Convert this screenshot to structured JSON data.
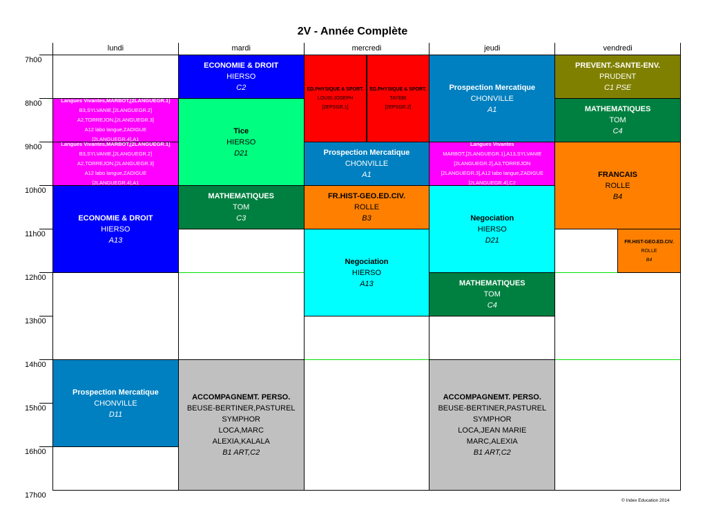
{
  "title": "2V - Année Complète",
  "days": [
    "lundi",
    "mardi",
    "mercredi",
    "jeudi",
    "vendredi"
  ],
  "hours": [
    "7h00",
    "8h00",
    "9h00",
    "10h00",
    "11h00",
    "12h00",
    "13h00",
    "14h00",
    "15h00",
    "16h00",
    "17h00"
  ],
  "lunch_marks": [
    12,
    14
  ],
  "copyright": "© Index Education 2014",
  "colors": {
    "blue": "#0000FF",
    "steel": "#0080C0",
    "magenta": "#FF00FF",
    "green": "#00FF80",
    "darkgreen": "#008040",
    "red": "#FF0000",
    "orange": "#FF8000",
    "cyan": "#00FFFF",
    "olive": "#808000",
    "gray": "#C0C0C0"
  },
  "cells": [
    {
      "day": 0,
      "start": 8,
      "end": 9,
      "color": "magenta",
      "fg": "#fff",
      "size": "small",
      "title": "Langues Vivantes,MARBOT,[2LANGUEGR.1]",
      "lines": [
        "B3,SYLVANIE,[2LANGUEGR.2]",
        "A2,TORREJON,[2LANGUEGR.3]",
        "A12  labo langue,ZADIGUE",
        "[2LANGUEGR.4],A1"
      ],
      "room": ""
    },
    {
      "day": 0,
      "start": 9,
      "end": 10,
      "color": "magenta",
      "fg": "#fff",
      "size": "small",
      "title": "Langues Vivantes,MARBOT,[2LANGUEGR.1]",
      "lines": [
        "B3,SYLVANIE,[2LANGUEGR.2]",
        "A2,TORREJON,[2LANGUEGR.3]",
        "A12  labo langue,ZADIGUE",
        "[2LANGUEGR.4],A1"
      ],
      "room": ""
    },
    {
      "day": 0,
      "start": 10,
      "end": 12,
      "color": "blue",
      "fg": "#fff",
      "title": "ECONOMIE & DROIT",
      "lines": [
        "HIERSO"
      ],
      "room": "A13"
    },
    {
      "day": 0,
      "start": 14,
      "end": 16,
      "color": "steel",
      "fg": "#fff",
      "title": "Prospection Mercatique",
      "lines": [
        "CHONVILLE"
      ],
      "room": "D11"
    },
    {
      "day": 1,
      "start": 7,
      "end": 8,
      "color": "blue",
      "fg": "#fff",
      "title": "ECONOMIE & DROIT",
      "lines": [
        "HIERSO"
      ],
      "room": "C2"
    },
    {
      "day": 1,
      "start": 8,
      "end": 10,
      "color": "green",
      "fg": "#000",
      "title": "Tice",
      "lines": [
        "HIERSO"
      ],
      "room": "D21"
    },
    {
      "day": 1,
      "start": 10,
      "end": 11,
      "color": "darkgreen",
      "fg": "#fff",
      "title": "MATHEMATIQUES",
      "lines": [
        "TOM"
      ],
      "room": "C3"
    },
    {
      "day": 1,
      "start": 14,
      "end": 17,
      "color": "gray",
      "fg": "#000",
      "title": "ACCOMPAGNEMT. PERSO.",
      "lines": [
        "BEUSE-BERTINER,PASTUREL",
        "SYMPHOR",
        "LOCA,MARC",
        "ALEXIA,KALALA"
      ],
      "room": "B1 ART,C2"
    },
    {
      "day": 2,
      "start": 7,
      "end": 9,
      "color": "red",
      "fg": "#000",
      "size": "tiny",
      "half": "left",
      "title": "ED.PHYSIQUE & SPORT.",
      "lines": [
        "LOUIS-JOSEPH",
        "[2EPSGR.1]"
      ],
      "room": ""
    },
    {
      "day": 2,
      "start": 7,
      "end": 9,
      "color": "red",
      "fg": "#000",
      "size": "tiny",
      "half": "right",
      "title": "ED.PHYSIQUE & SPORT.",
      "lines": [
        "TAYEBI",
        "[2EPSGR.2]"
      ],
      "room": ""
    },
    {
      "day": 2,
      "start": 9,
      "end": 10,
      "color": "steel",
      "fg": "#fff",
      "title": "Prospection Mercatique",
      "lines": [
        "CHONVILLE"
      ],
      "room": "A1"
    },
    {
      "day": 2,
      "start": 10,
      "end": 11,
      "color": "orange",
      "fg": "#000",
      "title": "FR.HIST-GEO.ED.CIV.",
      "lines": [
        "ROLLE"
      ],
      "room": "B3"
    },
    {
      "day": 2,
      "start": 11,
      "end": 13,
      "color": "cyan",
      "fg": "#000",
      "title": "Negociation",
      "lines": [
        "HIERSO"
      ],
      "room": "A13"
    },
    {
      "day": 3,
      "start": 7,
      "end": 9,
      "color": "steel",
      "fg": "#fff",
      "title": "Prospection Mercatique",
      "lines": [
        "CHONVILLE"
      ],
      "room": "A1"
    },
    {
      "day": 3,
      "start": 9,
      "end": 10,
      "color": "magenta",
      "fg": "#fff",
      "size": "small",
      "title": "Langues Vivantes",
      "lines": [
        "MARBOT,[2LANGUEGR.1],A13,SYLVANIE",
        "[2LANGUEGR.2],A3,TORREJON",
        "[2LANGUEGR.3],A12  labo langue,ZADIGUE",
        "[2LANGUEGR.4],C2"
      ],
      "room": ""
    },
    {
      "day": 3,
      "start": 10,
      "end": 12,
      "color": "cyan",
      "fg": "#000",
      "title": "Negociation",
      "lines": [
        "HIERSO"
      ],
      "room": "D21"
    },
    {
      "day": 3,
      "start": 12,
      "end": 13,
      "color": "darkgreen",
      "fg": "#fff",
      "title": "MATHEMATIQUES",
      "lines": [
        "TOM"
      ],
      "room": "C4"
    },
    {
      "day": 3,
      "start": 14,
      "end": 17,
      "color": "gray",
      "fg": "#000",
      "title": "ACCOMPAGNEMT. PERSO.",
      "lines": [
        "BEUSE-BERTINER,PASTUREL",
        "SYMPHOR",
        "LOCA,JEAN MARIE",
        "MARC,ALEXIA"
      ],
      "room": "B1 ART,C2"
    },
    {
      "day": 4,
      "start": 7,
      "end": 8,
      "color": "olive",
      "fg": "#fff",
      "title": "PREVENT.-SANTE-ENV.",
      "lines": [
        "PRUDENT"
      ],
      "room": "C1 PSE"
    },
    {
      "day": 4,
      "start": 8,
      "end": 9,
      "color": "darkgreen",
      "fg": "#fff",
      "title": "MATHEMATIQUES",
      "lines": [
        "TOM"
      ],
      "room": "C4"
    },
    {
      "day": 4,
      "start": 9,
      "end": 11,
      "color": "orange",
      "fg": "#000",
      "title": "FRANCAIS",
      "lines": [
        "ROLLE"
      ],
      "room": "B4"
    },
    {
      "day": 4,
      "start": 11,
      "end": 12,
      "color": "orange",
      "fg": "#000",
      "size": "tiny",
      "half": "right",
      "title": "FR.HIST-GEO.ED.CIV.",
      "lines": [
        "ROLLE"
      ],
      "room": "B4"
    }
  ]
}
